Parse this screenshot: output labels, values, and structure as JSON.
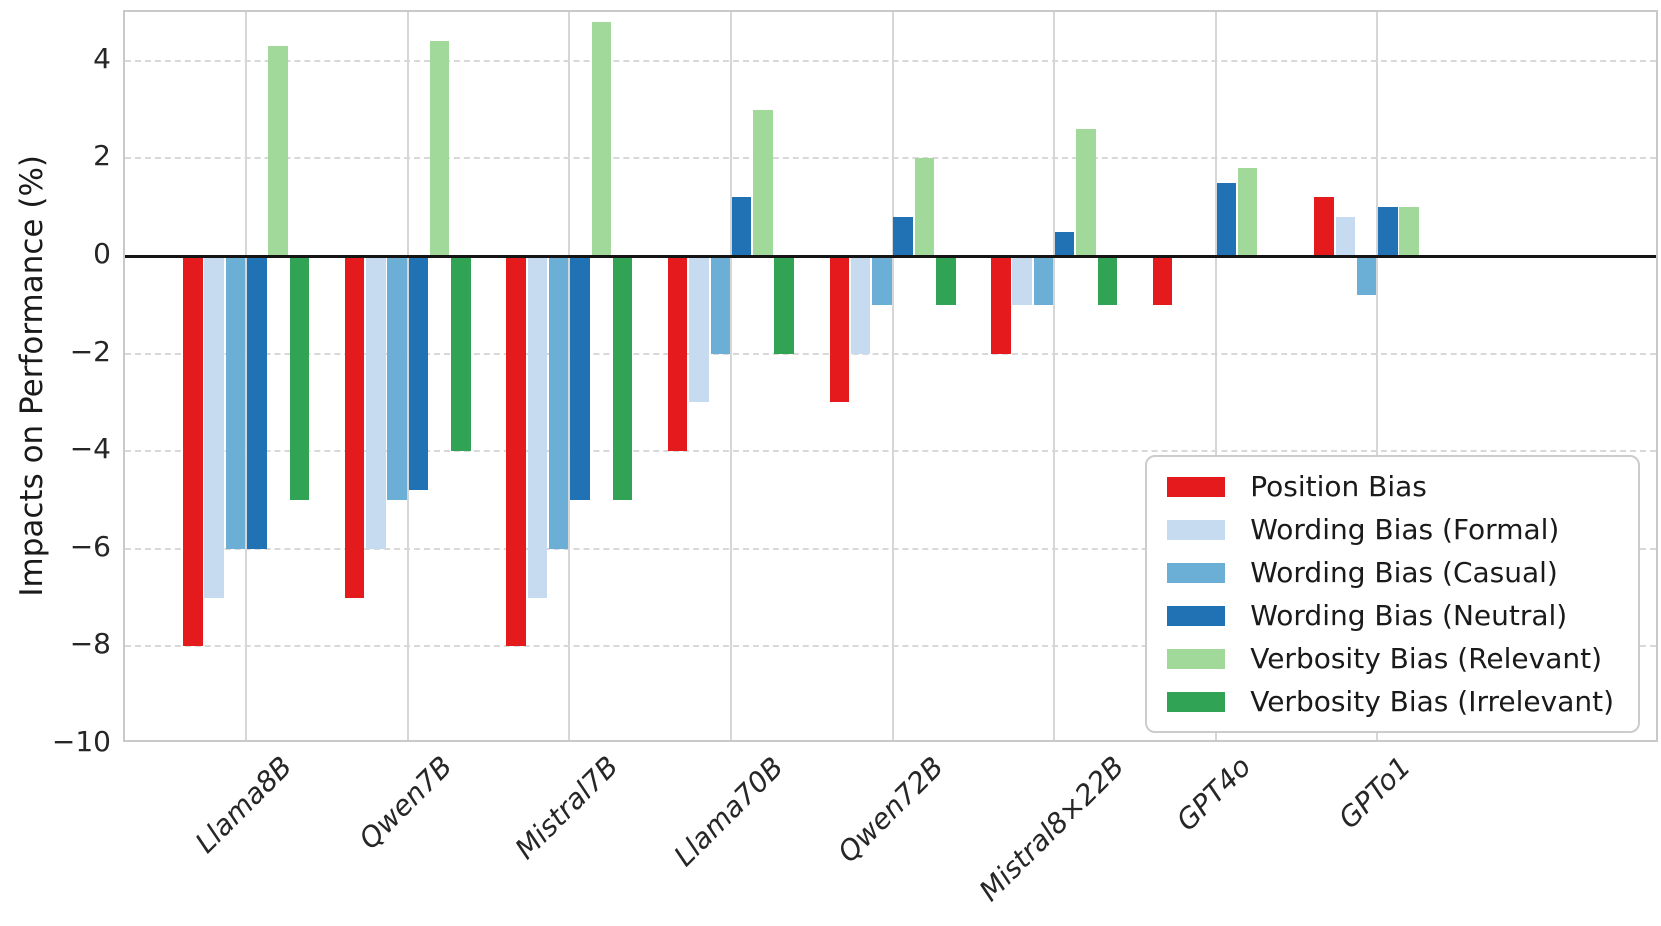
{
  "figure": {
    "background": "#ffffff",
    "grid_color": "#d6d6d6",
    "zero_line_color": "#141414",
    "text_color": "#262626"
  },
  "chart_data": {
    "type": "bar",
    "title": "",
    "xlabel": "",
    "ylabel": "Impacts on Performance (%)",
    "ylim": [
      -10,
      5
    ],
    "yticks": [
      4,
      2,
      0,
      -2,
      -4,
      -6,
      -8,
      -10
    ],
    "grid": true,
    "legend_position": "lower right",
    "categories": [
      "Llama8B",
      "Qwen7B",
      "Mistral7B",
      "Llama70B",
      "Qwen72B",
      "Mistral8×22B",
      "GPT4o",
      "GPTo1"
    ],
    "series": [
      {
        "name": "Position Bias",
        "color": "#e41a1c",
        "values": [
          -8.0,
          -7.0,
          -8.0,
          -4.0,
          -3.0,
          -2.0,
          -1.0,
          1.2
        ]
      },
      {
        "name": "Wording Bias (Formal)",
        "color": "#c6dbef",
        "values": [
          -7.0,
          -6.0,
          -7.0,
          -3.0,
          -2.0,
          -1.0,
          0.0,
          0.8
        ]
      },
      {
        "name": "Wording Bias (Casual)",
        "color": "#6baed6",
        "values": [
          -6.0,
          -5.0,
          -6.0,
          -2.0,
          -1.0,
          -1.0,
          0.0,
          -0.8
        ]
      },
      {
        "name": "Wording Bias (Neutral)",
        "color": "#2171b5",
        "values": [
          -6.0,
          -4.8,
          -5.0,
          1.2,
          0.8,
          0.5,
          1.5,
          1.0
        ]
      },
      {
        "name": "Verbosity Bias (Relevant)",
        "color": "#a1d99b",
        "values": [
          4.3,
          4.4,
          4.8,
          3.0,
          2.0,
          2.6,
          1.8,
          1.0
        ]
      },
      {
        "name": "Verbosity Bias (Irrelevant)",
        "color": "#31a354",
        "values": [
          -5.0,
          -4.0,
          -5.0,
          -2.0,
          -1.0,
          -1.0,
          0.0,
          0.0
        ]
      }
    ]
  }
}
